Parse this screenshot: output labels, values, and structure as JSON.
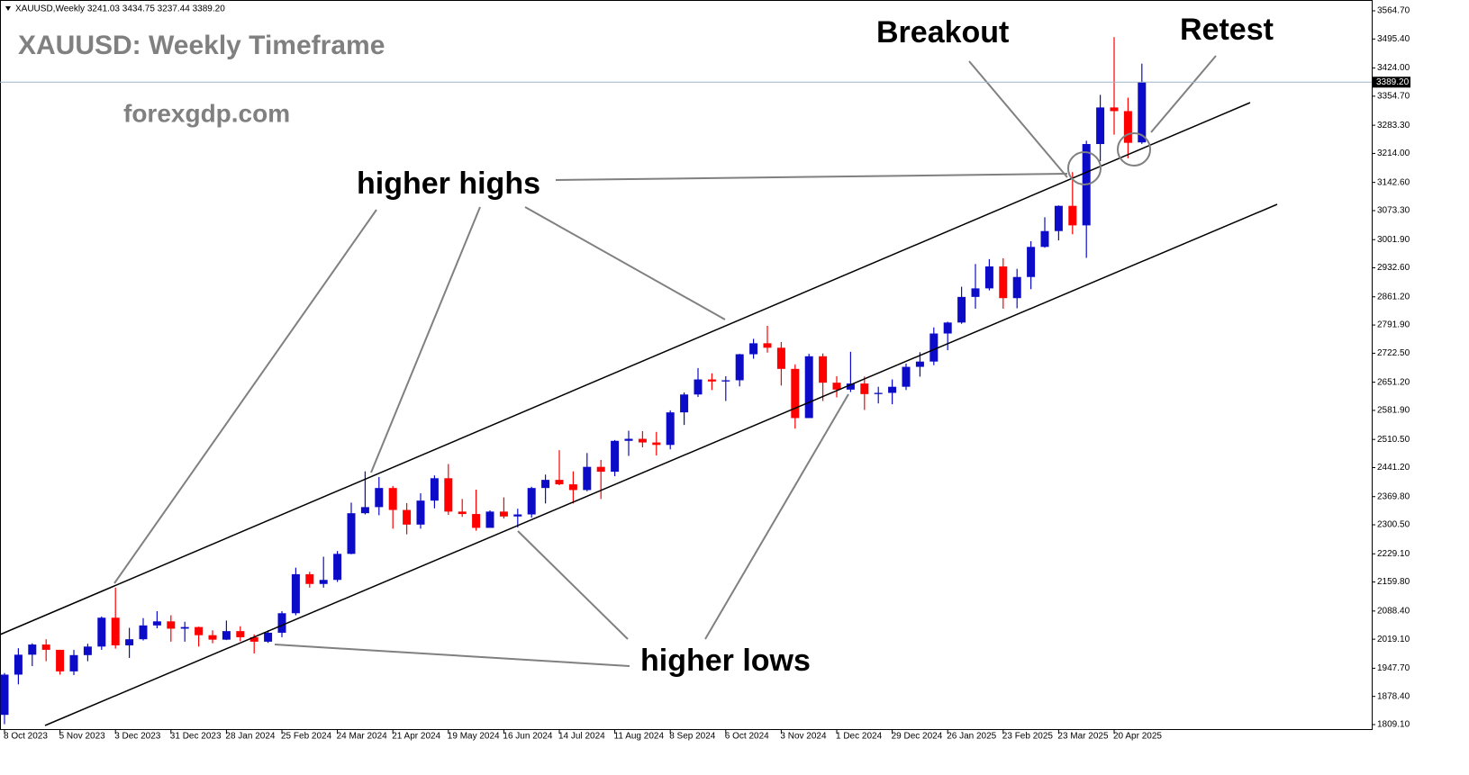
{
  "chart_data": {
    "type": "candlestick",
    "header": "XAUUSD,Weekly  3241.03 3434.75 3237.44 3389.20",
    "title": "XAUUSD: Weekly Timeframe",
    "watermark": "forexgdp.com",
    "annotations": [
      "Breakout",
      "Retest",
      "higher highs",
      "higher lows"
    ],
    "up_color": "#0c0cc8",
    "down_color": "#ff0000",
    "categories": [
      "8 Oct 2023",
      null,
      null,
      null,
      "5 Nov 2023",
      null,
      null,
      null,
      "3 Dec 2023",
      null,
      null,
      null,
      "31 Dec 2023",
      null,
      null,
      null,
      "28 Jan 2024",
      null,
      null,
      null,
      "25 Feb 2024",
      null,
      null,
      null,
      "24 Mar 2024",
      null,
      null,
      null,
      "21 Apr 2024",
      null,
      null,
      null,
      "19 May 2024",
      null,
      null,
      null,
      "16 Jun 2024",
      null,
      null,
      null,
      "14 Jul 2024",
      null,
      null,
      null,
      "11 Aug 2024",
      null,
      null,
      null,
      "8 Sep 2024",
      null,
      null,
      null,
      "6 Oct 2024",
      null,
      null,
      null,
      "3 Nov 2024",
      null,
      null,
      null,
      "1 Dec 2024",
      null,
      null,
      null,
      "29 Dec 2024",
      null,
      null,
      null,
      "26 Jan 2025",
      null,
      null,
      null,
      "23 Feb 2025",
      null,
      null,
      null,
      "23 Mar 2025",
      null,
      null,
      null,
      "20 Apr 2025",
      null,
      null
    ],
    "open": [
      1833,
      1932,
      1981,
      2006,
      1993,
      1940,
      1980,
      2001,
      2072,
      2004,
      2019,
      2053,
      2063,
      2045,
      2049,
      2029,
      2018,
      2039,
      2024,
      2013,
      2035,
      2083,
      2179,
      2155,
      2165,
      2229,
      2329,
      2344,
      2391,
      2337,
      2301,
      2360,
      2415,
      2333,
      2327,
      2293,
      2333,
      2321,
      2326,
      2391,
      2411,
      2400,
      2386,
      2443,
      2431,
      2507,
      2512,
      2503,
      2497,
      2577,
      2621,
      2658,
      2653,
      2656,
      2720,
      2747,
      2736,
      2684,
      2563,
      2715,
      2650,
      2633,
      2648,
      2622,
      2625,
      2640,
      2689,
      2702,
      2771,
      2798,
      2861,
      2882,
      2936,
      2858,
      2910,
      2984,
      3023,
      3085,
      3037,
      3237,
      3327,
      3318,
      3241.03
    ],
    "high": [
      1936,
      1997,
      2009,
      2019,
      1993,
      1993,
      2008,
      2075,
      2146,
      2047,
      2071,
      2088,
      2078,
      2062,
      2050,
      2041,
      2065,
      2051,
      2031,
      2041,
      2088,
      2195,
      2185,
      2222,
      2236,
      2355,
      2432,
      2418,
      2396,
      2354,
      2378,
      2422,
      2450,
      2364,
      2387,
      2336,
      2368,
      2340,
      2394,
      2424,
      2484,
      2432,
      2477,
      2460,
      2509,
      2532,
      2531,
      2529,
      2582,
      2626,
      2686,
      2673,
      2666,
      2721,
      2758,
      2790,
      2750,
      2695,
      2721,
      2722,
      2666,
      2726,
      2665,
      2640,
      2658,
      2697,
      2725,
      2786,
      2800,
      2886,
      2942,
      2954,
      2956,
      2930,
      2998,
      3057,
      3086,
      3168,
      3245,
      3358,
      3500,
      3351,
      3434.75
    ],
    "low": [
      1810,
      1908,
      1953,
      1965,
      1932,
      1931,
      1965,
      1993,
      1996,
      1973,
      2016,
      2046,
      2013,
      2013,
      2001,
      2009,
      2017,
      2014,
      1984,
      2010,
      2024,
      2078,
      2146,
      2146,
      2160,
      2228,
      2326,
      2324,
      2291,
      2277,
      2291,
      2341,
      2325,
      2320,
      2286,
      2293,
      2316,
      2294,
      2318,
      2353,
      2398,
      2353,
      2383,
      2364,
      2420,
      2470,
      2491,
      2471,
      2486,
      2546,
      2615,
      2632,
      2605,
      2641,
      2709,
      2724,
      2643,
      2537,
      2563,
      2605,
      2614,
      2627,
      2583,
      2599,
      2597,
      2632,
      2665,
      2693,
      2730,
      2795,
      2832,
      2877,
      2832,
      2833,
      2880,
      2982,
      3000,
      3015,
      2957,
      3195,
      3260,
      3202,
      3237.44
    ],
    "close": [
      1932,
      1981,
      2006,
      1993,
      1940,
      1980,
      2001,
      2072,
      2004,
      2019,
      2053,
      2063,
      2045,
      2049,
      2029,
      2018,
      2039,
      2024,
      2013,
      2035,
      2083,
      2179,
      2155,
      2165,
      2229,
      2329,
      2344,
      2391,
      2337,
      2301,
      2360,
      2415,
      2333,
      2327,
      2293,
      2333,
      2321,
      2326,
      2391,
      2411,
      2400,
      2386,
      2443,
      2431,
      2507,
      2512,
      2503,
      2497,
      2577,
      2621,
      2658,
      2653,
      2656,
      2720,
      2747,
      2736,
      2684,
      2563,
      2715,
      2650,
      2633,
      2648,
      2622,
      2625,
      2640,
      2689,
      2702,
      2771,
      2798,
      2861,
      2882,
      2936,
      2858,
      2910,
      2984,
      3023,
      3085,
      3037,
      3237,
      3327,
      3318,
      3240,
      3389.2
    ],
    "current_price": {
      "value": 3389.2,
      "label": "3389.20"
    },
    "ylim": [
      1795.8,
      3591.3
    ],
    "yticks": [
      {
        "value": 1809.1,
        "label": "1809.10"
      },
      {
        "value": 1878.4,
        "label": "1878.40"
      },
      {
        "value": 1947.7,
        "label": "1947.70"
      },
      {
        "value": 2019.1,
        "label": "2019.10"
      },
      {
        "value": 2088.4,
        "label": "2088.40"
      },
      {
        "value": 2159.8,
        "label": "2159.80"
      },
      {
        "value": 2229.1,
        "label": "2229.10"
      },
      {
        "value": 2300.5,
        "label": "2300.50"
      },
      {
        "value": 2369.8,
        "label": "2369.80"
      },
      {
        "value": 2441.2,
        "label": "2441.20"
      },
      {
        "value": 2510.5,
        "label": "2510.50"
      },
      {
        "value": 2581.9,
        "label": "2581.90"
      },
      {
        "value": 2651.2,
        "label": "2651.20"
      },
      {
        "value": 2722.5,
        "label": "2722.50"
      },
      {
        "value": 2791.9,
        "label": "2791.90"
      },
      {
        "value": 2861.2,
        "label": "2861.20"
      },
      {
        "value": 2932.6,
        "label": "2932.60"
      },
      {
        "value": 3001.9,
        "label": "3001.90"
      },
      {
        "value": 3073.3,
        "label": "3073.30"
      },
      {
        "value": 3142.6,
        "label": "3142.60"
      },
      {
        "value": 3214,
        "label": "3214.00"
      },
      {
        "value": 3283.3,
        "label": "3283.30"
      },
      {
        "value": 3354.7,
        "label": "3354.70"
      },
      {
        "value": 3424,
        "label": "3424.00"
      },
      {
        "value": 3495.4,
        "label": "3495.40"
      },
      {
        "value": 3564.7,
        "label": "3564.70"
      }
    ]
  }
}
